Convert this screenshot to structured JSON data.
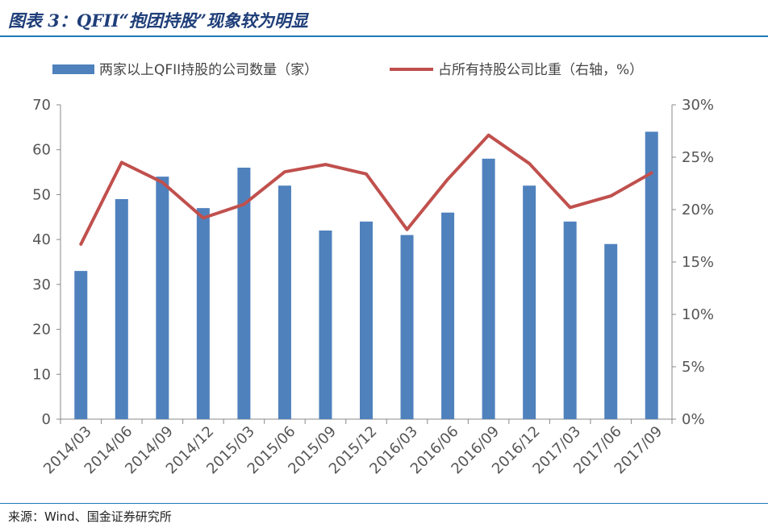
{
  "title": "图表 3：QFII“抱团持股”现象较为明显",
  "source": "来源：Wind、国金证券研究所",
  "chart_data": {
    "type": "bar",
    "categories": [
      "2014/03",
      "2014/06",
      "2014/09",
      "2014/12",
      "2015/03",
      "2015/06",
      "2015/09",
      "2015/12",
      "2016/03",
      "2016/06",
      "2016/09",
      "2016/12",
      "2017/03",
      "2017/06",
      "2017/09"
    ],
    "series": [
      {
        "name": "两家以上QFII持股的公司数量（家）",
        "type": "bar",
        "axis": "left",
        "color": "#4f81bd",
        "values": [
          33,
          49,
          54,
          47,
          56,
          52,
          42,
          44,
          41,
          46,
          58,
          52,
          44,
          39,
          64
        ]
      },
      {
        "name": "占所有持股公司比重（右轴，%）",
        "type": "line",
        "axis": "right",
        "color": "#c0504d",
        "values": [
          16.7,
          24.5,
          22.6,
          19.2,
          20.5,
          23.6,
          24.3,
          23.4,
          18.1,
          22.9,
          27.1,
          24.4,
          20.2,
          21.3,
          23.5
        ]
      }
    ],
    "left_axis": {
      "min": 0,
      "max": 70,
      "ticks": [
        "0",
        "10",
        "20",
        "30",
        "40",
        "50",
        "60",
        "70"
      ]
    },
    "right_axis": {
      "min": 0,
      "max": 30,
      "ticks": [
        "0%",
        "5%",
        "10%",
        "15%",
        "20%",
        "25%",
        "30%"
      ]
    },
    "grid": false,
    "legend_position": "top"
  }
}
